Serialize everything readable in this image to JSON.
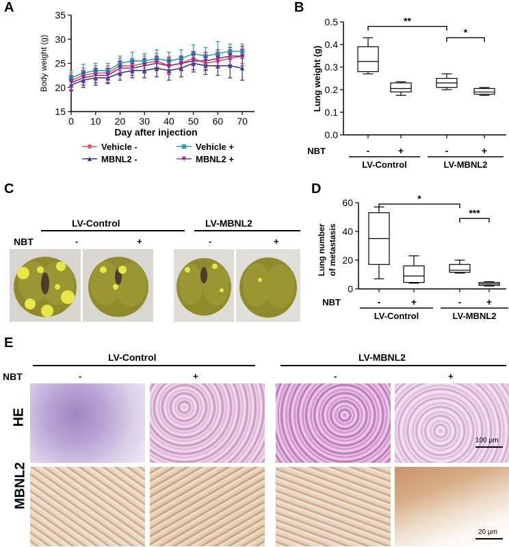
{
  "panels": {
    "A": {
      "letter": "A",
      "chart_data": {
        "type": "line",
        "xlabel": "Day after injection",
        "ylabel": "Body weight (g)",
        "xlim": [
          0,
          75
        ],
        "ylim": [
          15,
          35
        ],
        "xticks": [
          "0",
          "10",
          "20",
          "30",
          "40",
          "50",
          "60",
          "70"
        ],
        "yticks": [
          "15",
          "20",
          "25",
          "30",
          "35"
        ],
        "x": [
          0,
          5,
          10,
          15,
          20,
          25,
          30,
          35,
          40,
          45,
          50,
          55,
          60,
          65,
          70
        ],
        "legend_position": "bottom",
        "series": [
          {
            "name": "Vehicle -",
            "color": "#e8555a",
            "marker": "circle",
            "values": [
              21.5,
              22.5,
              23,
              23,
              24.5,
              24.5,
              25,
              25.5,
              24.5,
              25,
              26,
              25,
              25.5,
              26,
              26.5
            ],
            "err": [
              1.5,
              1.5,
              1.5,
              1.5,
              1.5,
              1.5,
              1.5,
              1.5,
              1.5,
              1.5,
              1.5,
              1.5,
              1.5,
              1.5,
              1.5
            ]
          },
          {
            "name": "Vehicle +",
            "color": "#29a3b0",
            "marker": "square",
            "values": [
              22,
              23,
              23.5,
              23.5,
              25,
              25.5,
              25.5,
              26,
              25.5,
              26,
              27,
              26.5,
              27,
              27.5,
              27.5
            ],
            "err": [
              1.5,
              1.8,
              1.5,
              1.5,
              1.5,
              1.8,
              1.5,
              1.8,
              1.8,
              1.8,
              1.8,
              1.8,
              2.5,
              1.5,
              1.5
            ]
          },
          {
            "name": "MBNL2 -",
            "color": "#2a3d9e",
            "marker": "triangle",
            "values": [
              20.5,
              21.5,
              22,
              22,
              23,
              23.5,
              23.5,
              24,
              23.5,
              24,
              25,
              24.5,
              24.5,
              24.5,
              24
            ],
            "err": [
              1.2,
              1.5,
              1.5,
              1.2,
              1.5,
              1.5,
              1.5,
              1.8,
              2,
              1.8,
              1.8,
              1.8,
              2,
              2.5,
              2.5
            ]
          },
          {
            "name": "MBNL2 +",
            "color": "#8e2a8e",
            "marker": "triangle-down",
            "values": [
              21,
              22,
              22.5,
              22.5,
              24,
              24,
              24.5,
              25,
              24.5,
              25,
              25.5,
              25.5,
              26,
              26.5,
              26.5
            ],
            "err": [
              1.5,
              1.5,
              1.5,
              1.5,
              1.5,
              1.5,
              1.5,
              1.5,
              1.8,
              1.5,
              1.8,
              1.8,
              1.8,
              1.8,
              2
            ]
          }
        ]
      }
    },
    "B": {
      "letter": "B",
      "chart_data": {
        "type": "box",
        "ylabel": "Lung weight (g)",
        "ylim": [
          0,
          0.5
        ],
        "yticks": [
          "0.0",
          "0.1",
          "0.2",
          "0.3",
          "0.4",
          "0.5"
        ],
        "row_label": "NBT",
        "categories": [
          "-",
          "+",
          "-",
          "+"
        ],
        "groups": [
          "LV-Control",
          "LV-MBNL2"
        ],
        "boxes": [
          {
            "min": 0.27,
            "q1": 0.28,
            "median": 0.325,
            "q3": 0.39,
            "max": 0.43
          },
          {
            "min": 0.175,
            "q1": 0.19,
            "median": 0.205,
            "q3": 0.23,
            "max": 0.235
          },
          {
            "min": 0.2,
            "q1": 0.21,
            "median": 0.23,
            "q3": 0.25,
            "max": 0.27
          },
          {
            "min": 0.175,
            "q1": 0.18,
            "median": 0.19,
            "q3": 0.205,
            "max": 0.21
          }
        ],
        "significance": [
          {
            "from": 0,
            "to": 2,
            "label": "**",
            "y": 0.48
          },
          {
            "from": 2,
            "to": 3,
            "label": "*",
            "y": 0.43
          }
        ]
      }
    },
    "C": {
      "letter": "C",
      "row_label": "NBT",
      "groups": [
        "LV-Control",
        "LV-MBNL2"
      ],
      "signs": [
        "-",
        "+",
        "-",
        "+"
      ]
    },
    "D": {
      "letter": "D",
      "chart_data": {
        "type": "box",
        "ylabel": "Lung number of metastasis",
        "ylim": [
          0,
          60
        ],
        "yticks": [
          "0",
          "20",
          "40",
          "60"
        ],
        "row_label": "NBT",
        "categories": [
          "-",
          "+",
          "-",
          "+"
        ],
        "groups": [
          "LV-Control",
          "LV-MBNL2"
        ],
        "boxes": [
          {
            "min": 7,
            "q1": 17,
            "median": 35,
            "q3": 53,
            "max": 57
          },
          {
            "min": 4,
            "q1": 4.5,
            "median": 9,
            "q3": 16,
            "max": 23
          },
          {
            "min": 11,
            "q1": 11.5,
            "median": 13,
            "q3": 17,
            "max": 20
          },
          {
            "min": 2,
            "q1": 2.5,
            "median": 3.5,
            "q3": 4.5,
            "max": 5
          }
        ],
        "significance": [
          {
            "from": 0,
            "to": 2,
            "label": "*",
            "y": 59
          },
          {
            "from": 2,
            "to": 3,
            "label": "***",
            "y": 49
          }
        ]
      }
    },
    "E": {
      "letter": "E",
      "row_label": "NBT",
      "groups": [
        "LV-Control",
        "LV-MBNL2"
      ],
      "signs": [
        "-",
        "+",
        "-",
        "+"
      ],
      "rows": [
        "HE",
        "MBNL2"
      ],
      "scalebar_he": "100 μm",
      "scalebar_ihc": "20 μm"
    }
  }
}
